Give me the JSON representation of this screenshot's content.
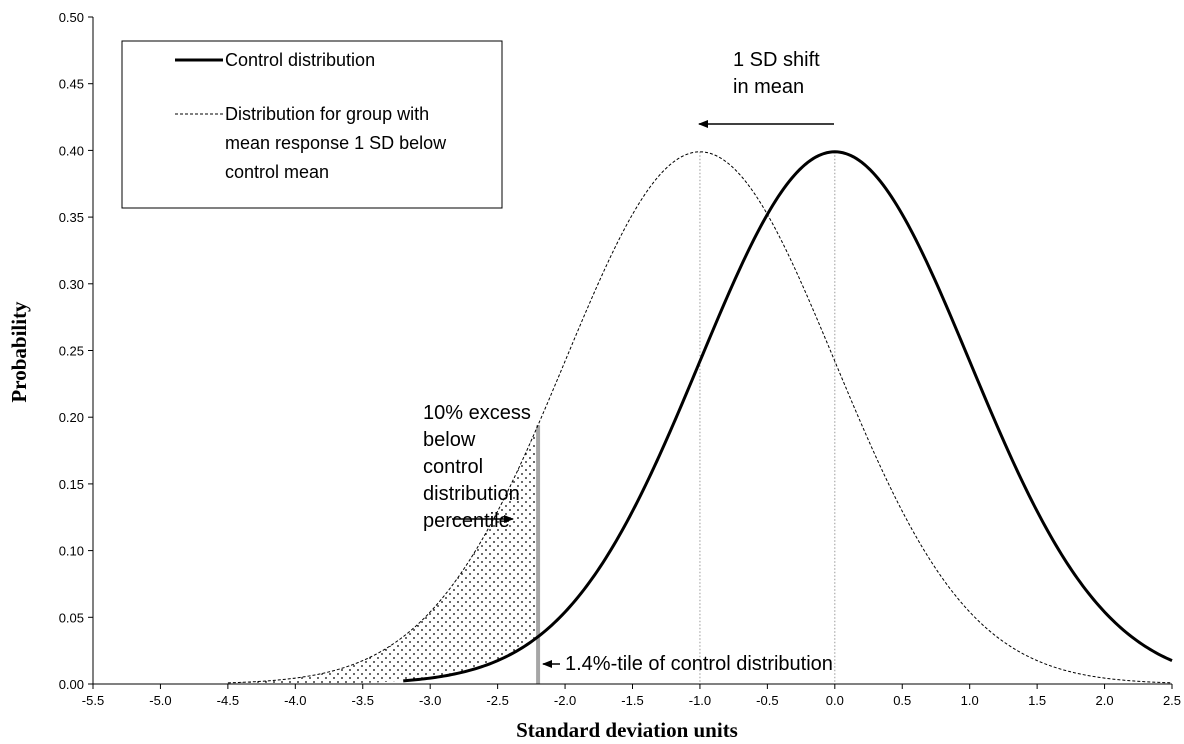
{
  "chart_data": {
    "type": "line",
    "xlabel": "Standard deviation units",
    "ylabel": "Probability",
    "xlim": [
      -5.5,
      2.5
    ],
    "ylim": [
      0,
      0.5
    ],
    "x_ticks": [
      "-5.5",
      "-5.0",
      "-4.5",
      "-4.0",
      "-3.5",
      "-3.0",
      "-2.5",
      "-2.0",
      "-1.5",
      "-1.0",
      "-0.5",
      "0.0",
      "0.5",
      "1.0",
      "1.5",
      "2.0",
      "2.5"
    ],
    "y_ticks": [
      "0.00",
      "0.05",
      "0.10",
      "0.15",
      "0.20",
      "0.25",
      "0.30",
      "0.35",
      "0.40",
      "0.45",
      "0.50"
    ],
    "grid": false,
    "legend_position": "top-left",
    "series": [
      {
        "name": "Control distribution",
        "style": "solid",
        "color": "#000000",
        "mean": 0.0,
        "sd": 1.0,
        "x": [
          -3.0,
          -2.5,
          -2.2,
          -2.0,
          -1.5,
          -1.0,
          -0.5,
          0.0,
          0.5,
          1.0,
          1.5,
          2.0,
          2.5
        ],
        "y": [
          0.004,
          0.018,
          0.035,
          0.054,
          0.13,
          0.242,
          0.352,
          0.399,
          0.352,
          0.242,
          0.13,
          0.054,
          0.018
        ]
      },
      {
        "name": "Distribution for group with mean response 1 SD below control mean",
        "legend_lines": [
          "Distribution for group with",
          "mean response 1 SD below",
          "control mean"
        ],
        "style": "dashed",
        "color": "#000000",
        "mean": -1.0,
        "sd": 1.0,
        "x": [
          -4.5,
          -4.0,
          -3.5,
          -3.0,
          -2.5,
          -2.2,
          -2.0,
          -1.5,
          -1.0,
          -0.5,
          0.0,
          0.5,
          1.0,
          1.5,
          2.0,
          2.5
        ],
        "y": [
          0.001,
          0.004,
          0.018,
          0.054,
          0.13,
          0.194,
          0.242,
          0.352,
          0.399,
          0.352,
          0.242,
          0.13,
          0.054,
          0.018,
          0.004,
          0.001
        ]
      }
    ],
    "reference_lines": [
      {
        "x": -1.0,
        "style": "dotted",
        "color": "#999999"
      },
      {
        "x": 0.0,
        "style": "dotted",
        "color": "#999999"
      },
      {
        "x": -2.2,
        "style": "solid",
        "color": "#a6a6a6"
      }
    ],
    "shaded_region": {
      "from_x": -4.5,
      "to_x": -2.2,
      "between": "shifted and control curves",
      "pattern": "dots"
    },
    "annotations": {
      "shift": [
        "1 SD shift",
        "in mean"
      ],
      "excess": [
        "10% excess",
        "below",
        "control",
        "distribution",
        "percentile"
      ],
      "percentile": "1.4%-tile of control distribution"
    }
  }
}
